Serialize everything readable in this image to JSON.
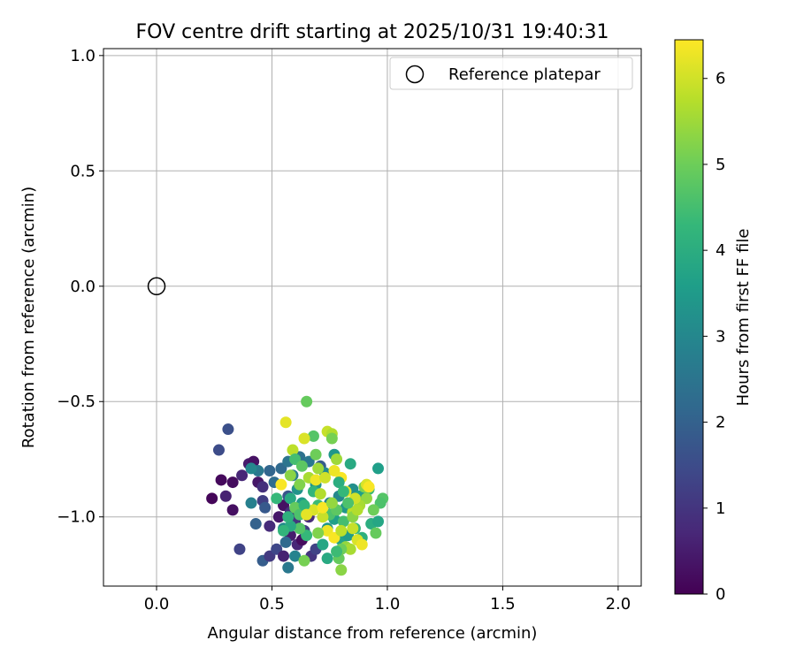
{
  "chart_data": {
    "type": "scatter",
    "title": "FOV centre drift starting at 2025/10/31 19:40:31",
    "xlabel": "Angular distance from reference (arcmin)",
    "ylabel": "Rotation from reference (arcmin)",
    "xlim": [
      -0.23,
      2.1
    ],
    "ylim": [
      -1.3,
      1.03
    ],
    "xticks": [
      0.0,
      0.5,
      1.0,
      1.5,
      2.0
    ],
    "xtick_labels": [
      "0.0",
      "0.5",
      "1.0",
      "1.5",
      "2.0"
    ],
    "yticks": [
      -1.0,
      -0.5,
      0.0,
      0.5,
      1.0
    ],
    "ytick_labels": [
      "−1.0",
      "−0.5",
      "0.0",
      "0.5",
      "1.0"
    ],
    "grid": true,
    "legend": {
      "position": "top-right",
      "label": "Reference platepar"
    },
    "reference_point": {
      "x": 0.0,
      "y": 0.0
    },
    "colorbar": {
      "label": "Hours from first FF file",
      "range": [
        0,
        6.45
      ],
      "ticks": [
        0,
        1,
        2,
        3,
        4,
        5,
        6
      ],
      "tick_labels": [
        "0",
        "1",
        "2",
        "3",
        "4",
        "5",
        "6"
      ],
      "colormap": "viridis",
      "colormap_stops": [
        "#440154",
        "#482878",
        "#3e4989",
        "#31688e",
        "#26828e",
        "#1f9e89",
        "#35b779",
        "#6ece58",
        "#b5de2b",
        "#fde725"
      ]
    },
    "series": [
      {
        "name": "FOV centre",
        "points": [
          [
            0.24,
            -0.92,
            0.1
          ],
          [
            0.28,
            -0.84,
            0.15
          ],
          [
            0.33,
            -0.85,
            0.2
          ],
          [
            0.33,
            -0.97,
            0.25
          ],
          [
            0.3,
            -0.91,
            0.6
          ],
          [
            0.27,
            -0.71,
            1.5
          ],
          [
            0.31,
            -0.62,
            1.6
          ],
          [
            0.36,
            -1.14,
            1.3
          ],
          [
            0.37,
            -0.82,
            0.7
          ],
          [
            0.4,
            -0.77,
            0.5
          ],
          [
            0.42,
            -0.76,
            0.3
          ],
          [
            0.44,
            -0.85,
            0.4
          ],
          [
            0.46,
            -0.87,
            0.9
          ],
          [
            0.46,
            -0.93,
            1.2
          ],
          [
            0.47,
            -0.96,
            1.8
          ],
          [
            0.43,
            -1.03,
            2.0
          ],
          [
            0.46,
            -1.19,
            1.9
          ],
          [
            0.49,
            -1.04,
            0.8
          ],
          [
            0.49,
            -1.17,
            1.1
          ],
          [
            0.52,
            -1.14,
            1.4
          ],
          [
            0.55,
            -1.17,
            0.6
          ],
          [
            0.53,
            -1.0,
            0.4
          ],
          [
            0.55,
            -0.95,
            0.3
          ],
          [
            0.57,
            -0.91,
            1.7
          ],
          [
            0.58,
            -0.98,
            0.9
          ],
          [
            0.6,
            -1.02,
            1.0
          ],
          [
            0.58,
            -1.08,
            0.5
          ],
          [
            0.61,
            -1.12,
            0.7
          ],
          [
            0.63,
            -1.1,
            0.2
          ],
          [
            0.64,
            -1.06,
            1.2
          ],
          [
            0.66,
            -1.0,
            0.8
          ],
          [
            0.67,
            -1.17,
            1.0
          ],
          [
            0.69,
            -1.14,
            1.3
          ],
          [
            0.56,
            -1.11,
            2.2
          ],
          [
            0.57,
            -1.22,
            2.6
          ],
          [
            0.6,
            -1.17,
            2.9
          ],
          [
            0.55,
            -1.05,
            3.1
          ],
          [
            0.54,
            -0.79,
            2.2
          ],
          [
            0.57,
            -0.76,
            2.5
          ],
          [
            0.59,
            -0.82,
            2.7
          ],
          [
            0.51,
            -0.85,
            2.3
          ],
          [
            0.49,
            -0.8,
            2.1
          ],
          [
            0.41,
            -0.94,
            2.8
          ],
          [
            0.44,
            -0.8,
            2.6
          ],
          [
            0.41,
            -0.79,
            3.0
          ],
          [
            0.61,
            -0.88,
            3.3
          ],
          [
            0.63,
            -0.94,
            3.5
          ],
          [
            0.65,
            -0.97,
            3.2
          ],
          [
            0.62,
            -0.74,
            2.4
          ],
          [
            0.66,
            -0.76,
            2.6
          ],
          [
            0.71,
            -0.78,
            1.9
          ],
          [
            0.75,
            -0.94,
            2.9
          ],
          [
            0.77,
            -1.01,
            3.6
          ],
          [
            0.74,
            -1.05,
            3.4
          ],
          [
            0.72,
            -1.12,
            3.8
          ],
          [
            0.74,
            -1.18,
            3.9
          ],
          [
            0.8,
            -1.1,
            3.7
          ],
          [
            0.83,
            -1.08,
            3.5
          ],
          [
            0.82,
            -0.96,
            3.4
          ],
          [
            0.79,
            -0.91,
            3.0
          ],
          [
            0.85,
            -0.88,
            3.2
          ],
          [
            0.88,
            -0.91,
            3.6
          ],
          [
            0.84,
            -0.77,
            3.9
          ],
          [
            0.77,
            -0.73,
            3.4
          ],
          [
            0.73,
            -0.81,
            3.1
          ],
          [
            0.69,
            -0.86,
            3.3
          ],
          [
            0.68,
            -0.89,
            4.2
          ],
          [
            0.7,
            -0.95,
            4.4
          ],
          [
            0.75,
            -0.99,
            4.6
          ],
          [
            0.78,
            -0.97,
            4.8
          ],
          [
            0.81,
            -1.02,
            4.5
          ],
          [
            0.86,
            -1.05,
            4.3
          ],
          [
            0.89,
            -1.09,
            4.1
          ],
          [
            0.93,
            -1.03,
            4.0
          ],
          [
            0.96,
            -1.02,
            3.8
          ],
          [
            0.96,
            -0.79,
            3.6
          ],
          [
            0.95,
            -1.07,
            4.9
          ],
          [
            0.98,
            -0.92,
            4.7
          ],
          [
            0.97,
            -0.94,
            4.6
          ],
          [
            0.92,
            -0.88,
            4.4
          ],
          [
            0.9,
            -0.87,
            5.2
          ],
          [
            0.94,
            -0.97,
            5.0
          ],
          [
            0.91,
            -0.92,
            5.4
          ],
          [
            0.88,
            -0.95,
            5.6
          ],
          [
            0.85,
            -0.98,
            5.8
          ],
          [
            0.86,
            -0.92,
            6.0
          ],
          [
            0.82,
            -0.89,
            6.2
          ],
          [
            0.8,
            -0.83,
            6.4
          ],
          [
            0.77,
            -0.8,
            6.3
          ],
          [
            0.78,
            -0.75,
            5.5
          ],
          [
            0.74,
            -0.63,
            5.9
          ],
          [
            0.76,
            -0.64,
            5.7
          ],
          [
            0.76,
            -0.66,
            5.1
          ],
          [
            0.68,
            -0.65,
            4.7
          ],
          [
            0.64,
            -0.66,
            6.1
          ],
          [
            0.65,
            -0.5,
            4.9
          ],
          [
            0.56,
            -0.59,
            6.2
          ],
          [
            0.59,
            -0.71,
            5.8
          ],
          [
            0.6,
            -0.75,
            4.5
          ],
          [
            0.63,
            -0.78,
            4.8
          ],
          [
            0.69,
            -0.73,
            5.0
          ],
          [
            0.58,
            -0.82,
            5.3
          ],
          [
            0.54,
            -0.86,
            6.4
          ],
          [
            0.62,
            -0.86,
            5.2
          ],
          [
            0.66,
            -0.83,
            5.6
          ],
          [
            0.69,
            -0.84,
            6.3
          ],
          [
            0.7,
            -0.79,
            5.5
          ],
          [
            0.73,
            -0.83,
            6.0
          ],
          [
            0.71,
            -0.9,
            5.7
          ],
          [
            0.68,
            -0.97,
            6.1
          ],
          [
            0.72,
            -1.0,
            5.9
          ],
          [
            0.74,
            -1.06,
            6.3
          ],
          [
            0.77,
            -1.09,
            6.4
          ],
          [
            0.8,
            -1.06,
            5.8
          ],
          [
            0.82,
            -1.13,
            5.4
          ],
          [
            0.84,
            -1.14,
            5.6
          ],
          [
            0.85,
            -1.05,
            5.9
          ],
          [
            0.87,
            -1.1,
            6.1
          ],
          [
            0.89,
            -1.12,
            6.3
          ],
          [
            0.8,
            -1.23,
            5.3
          ],
          [
            0.79,
            -1.18,
            4.9
          ],
          [
            0.8,
            -1.14,
            5.0
          ],
          [
            0.78,
            -1.15,
            4.4
          ],
          [
            0.7,
            -1.07,
            5.2
          ],
          [
            0.65,
            -1.08,
            4.3
          ],
          [
            0.62,
            -1.05,
            4.7
          ],
          [
            0.64,
            -1.19,
            5.1
          ],
          [
            0.58,
            -1.04,
            3.9
          ],
          [
            0.57,
            -1.0,
            4.1
          ],
          [
            0.55,
            -1.06,
            4.2
          ],
          [
            0.52,
            -0.92,
            4.3
          ],
          [
            0.58,
            -0.92,
            3.9
          ],
          [
            0.6,
            -0.96,
            4.9
          ],
          [
            0.62,
            -0.99,
            4.6
          ],
          [
            0.64,
            -0.95,
            4.2
          ],
          [
            0.65,
            -0.99,
            6.2
          ],
          [
            0.72,
            -0.96,
            6.4
          ],
          [
            0.76,
            -0.94,
            5.4
          ],
          [
            0.79,
            -0.85,
            4.0
          ],
          [
            0.81,
            -0.89,
            4.3
          ],
          [
            0.83,
            -0.94,
            4.6
          ],
          [
            0.85,
            -1.0,
            5.3
          ],
          [
            0.87,
            -0.97,
            5.7
          ],
          [
            0.91,
            -0.86,
            6.1
          ],
          [
            0.92,
            -0.87,
            6.4
          ]
        ]
      }
    ]
  }
}
